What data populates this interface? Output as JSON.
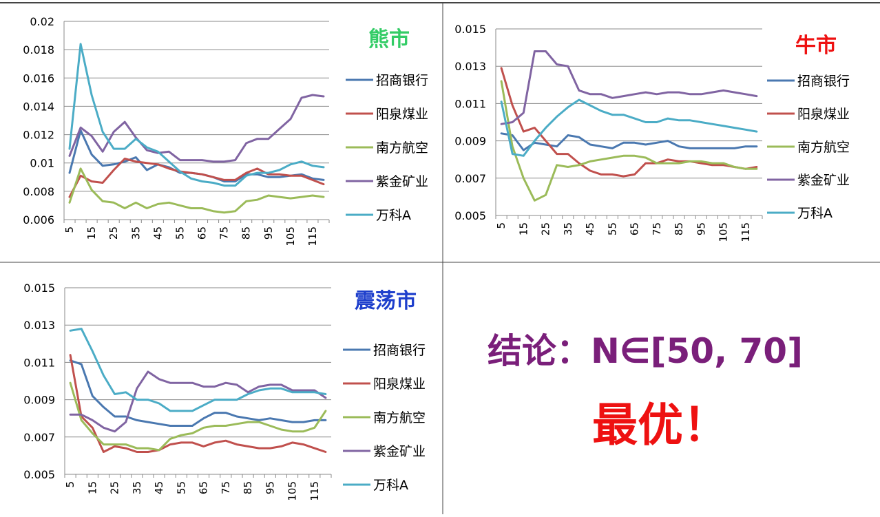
{
  "colors": {
    "招商银行": "#4a78b0",
    "阳泉煤业": "#c0504d",
    "南方航空": "#9bbb59",
    "紫金矿业": "#8064a2",
    "万科A": "#4bacc6",
    "title_bear": "#33cc66",
    "title_bull": "#ee1111",
    "title_osc": "#1e3fcc",
    "conclusion": "#7a1f7a",
    "best": "#ee1111"
  },
  "legend": [
    "招商银行",
    "阳泉煤业",
    "南方航空",
    "紫金矿业",
    "万科A"
  ],
  "chart_data": [
    {
      "type": "line",
      "title": "熊市",
      "x": [
        5,
        10,
        15,
        20,
        25,
        30,
        35,
        40,
        45,
        50,
        55,
        60,
        65,
        70,
        75,
        80,
        85,
        90,
        95,
        100,
        105,
        110,
        115,
        120
      ],
      "xticks": [
        "5",
        "15",
        "25",
        "35",
        "45",
        "55",
        "65",
        "75",
        "85",
        "95",
        "105",
        "115"
      ],
      "ylim": [
        0.006,
        0.02
      ],
      "yticks": [
        "0.006",
        "0.008",
        "0.01",
        "0.012",
        "0.014",
        "0.016",
        "0.018",
        "0.02"
      ],
      "series": [
        {
          "name": "招商银行",
          "values": [
            0.0093,
            0.0123,
            0.0106,
            0.0098,
            0.0099,
            0.0101,
            0.0104,
            0.0095,
            0.0099,
            0.0097,
            0.0093,
            0.0093,
            0.0092,
            0.009,
            0.0087,
            0.0087,
            0.0092,
            0.0092,
            0.009,
            0.009,
            0.0091,
            0.0092,
            0.0089,
            0.0088
          ]
        },
        {
          "name": "阳泉煤业",
          "values": [
            0.0076,
            0.0091,
            0.0087,
            0.0086,
            0.0095,
            0.0103,
            0.0101,
            0.01,
            0.0099,
            0.0096,
            0.0094,
            0.0093,
            0.0092,
            0.009,
            0.0088,
            0.0088,
            0.0093,
            0.0096,
            0.0092,
            0.0092,
            0.0091,
            0.0091,
            0.0088,
            0.0085
          ]
        },
        {
          "name": "南方航空",
          "values": [
            0.0072,
            0.0096,
            0.0081,
            0.0073,
            0.0072,
            0.0068,
            0.0072,
            0.0068,
            0.0071,
            0.0072,
            0.007,
            0.0068,
            0.0068,
            0.0066,
            0.0065,
            0.0066,
            0.0073,
            0.0074,
            0.0077,
            0.0076,
            0.0075,
            0.0076,
            0.0077,
            0.0076
          ]
        },
        {
          "name": "紫金矿业",
          "values": [
            0.0105,
            0.0125,
            0.0119,
            0.0108,
            0.0122,
            0.0129,
            0.0118,
            0.0109,
            0.0107,
            0.0108,
            0.0102,
            0.0102,
            0.0102,
            0.0101,
            0.0101,
            0.0102,
            0.0114,
            0.0117,
            0.0117,
            0.0124,
            0.0131,
            0.0146,
            0.0148,
            0.0147
          ]
        },
        {
          "name": "万科A",
          "values": [
            0.011,
            0.0184,
            0.0148,
            0.0122,
            0.011,
            0.011,
            0.0117,
            0.0111,
            0.0108,
            0.0101,
            0.0094,
            0.0089,
            0.0087,
            0.0086,
            0.0084,
            0.0084,
            0.0091,
            0.0093,
            0.0093,
            0.0095,
            0.0099,
            0.0101,
            0.0098,
            0.0097
          ]
        }
      ]
    },
    {
      "type": "line",
      "title": "牛市",
      "x": [
        5,
        10,
        15,
        20,
        25,
        30,
        35,
        40,
        45,
        50,
        55,
        60,
        65,
        70,
        75,
        80,
        85,
        90,
        95,
        100,
        105,
        110,
        115,
        120
      ],
      "xticks": [
        "5",
        "15",
        "25",
        "35",
        "45",
        "55",
        "65",
        "75",
        "85",
        "95",
        "105",
        "115"
      ],
      "ylim": [
        0.005,
        0.015
      ],
      "yticks": [
        "0.005",
        "0.007",
        "0.009",
        "0.011",
        "0.013",
        "0.015"
      ],
      "series": [
        {
          "name": "招商银行",
          "values": [
            0.0094,
            0.0093,
            0.0085,
            0.0089,
            0.0088,
            0.0087,
            0.0093,
            0.0092,
            0.0088,
            0.0087,
            0.0086,
            0.0089,
            0.0089,
            0.0088,
            0.0089,
            0.009,
            0.0087,
            0.0086,
            0.0086,
            0.0086,
            0.0086,
            0.0086,
            0.0087,
            0.0087
          ]
        },
        {
          "name": "阳泉煤业",
          "values": [
            0.0129,
            0.0109,
            0.0095,
            0.0097,
            0.009,
            0.0083,
            0.0083,
            0.0078,
            0.0074,
            0.0072,
            0.0072,
            0.0071,
            0.0072,
            0.0078,
            0.0078,
            0.008,
            0.0079,
            0.0079,
            0.0078,
            0.0077,
            0.0077,
            0.0076,
            0.0075,
            0.0076
          ]
        },
        {
          "name": "南方航空",
          "values": [
            0.0122,
            0.0087,
            0.007,
            0.0058,
            0.0061,
            0.0077,
            0.0076,
            0.0077,
            0.0079,
            0.008,
            0.0081,
            0.0082,
            0.0082,
            0.0081,
            0.0078,
            0.0078,
            0.0078,
            0.0079,
            0.0079,
            0.0078,
            0.0078,
            0.0076,
            0.0075,
            0.0075
          ]
        },
        {
          "name": "紫金矿业",
          "values": [
            0.0099,
            0.01,
            0.0105,
            0.0138,
            0.0138,
            0.0131,
            0.013,
            0.0117,
            0.0115,
            0.0115,
            0.0113,
            0.0114,
            0.0115,
            0.0116,
            0.0115,
            0.0116,
            0.0116,
            0.0115,
            0.0115,
            0.0116,
            0.0117,
            0.0116,
            0.0115,
            0.0114
          ]
        },
        {
          "name": "万科A",
          "values": [
            0.0111,
            0.0083,
            0.0082,
            0.009,
            0.0097,
            0.0103,
            0.0108,
            0.0112,
            0.0109,
            0.0106,
            0.0104,
            0.0104,
            0.0102,
            0.01,
            0.01,
            0.0102,
            0.0101,
            0.0101,
            0.01,
            0.0099,
            0.0098,
            0.0097,
            0.0096,
            0.0095
          ]
        }
      ]
    },
    {
      "type": "line",
      "title": "震荡市",
      "x": [
        5,
        10,
        15,
        20,
        25,
        30,
        35,
        40,
        45,
        50,
        55,
        60,
        65,
        70,
        75,
        80,
        85,
        90,
        95,
        100,
        105,
        110,
        115,
        120
      ],
      "xticks": [
        "5",
        "15",
        "25",
        "35",
        "45",
        "55",
        "65",
        "75",
        "85",
        "95",
        "105",
        "115"
      ],
      "ylim": [
        0.005,
        0.015
      ],
      "yticks": [
        "0.005",
        "0.007",
        "0.009",
        "0.011",
        "0.013",
        "0.015"
      ],
      "series": [
        {
          "name": "招商银行",
          "values": [
            0.0111,
            0.0109,
            0.0092,
            0.0086,
            0.0081,
            0.0081,
            0.0079,
            0.0078,
            0.0077,
            0.0076,
            0.0076,
            0.0076,
            0.008,
            0.0083,
            0.0083,
            0.0081,
            0.008,
            0.0079,
            0.008,
            0.0079,
            0.0078,
            0.0078,
            0.0079,
            0.0079
          ]
        },
        {
          "name": "阳泉煤业",
          "values": [
            0.0114,
            0.0081,
            0.0075,
            0.0062,
            0.0065,
            0.0064,
            0.0062,
            0.0062,
            0.0063,
            0.0066,
            0.0067,
            0.0067,
            0.0065,
            0.0067,
            0.0068,
            0.0066,
            0.0065,
            0.0064,
            0.0064,
            0.0065,
            0.0067,
            0.0066,
            0.0064,
            0.0062
          ]
        },
        {
          "name": "南方航空",
          "values": [
            0.0099,
            0.0079,
            0.0072,
            0.0066,
            0.0066,
            0.0066,
            0.0064,
            0.0064,
            0.0063,
            0.0069,
            0.0071,
            0.0072,
            0.0075,
            0.0076,
            0.0076,
            0.0077,
            0.0078,
            0.0078,
            0.0076,
            0.0074,
            0.0073,
            0.0073,
            0.0075,
            0.0084
          ]
        },
        {
          "name": "紫金矿业",
          "values": [
            0.0082,
            0.0082,
            0.0079,
            0.0075,
            0.0073,
            0.0078,
            0.0096,
            0.0105,
            0.0101,
            0.0099,
            0.0099,
            0.0099,
            0.0097,
            0.0097,
            0.0099,
            0.0098,
            0.0094,
            0.0097,
            0.0098,
            0.0098,
            0.0095,
            0.0095,
            0.0095,
            0.0091
          ]
        },
        {
          "name": "万科A",
          "values": [
            0.0127,
            0.0128,
            0.0116,
            0.0103,
            0.0093,
            0.0094,
            0.009,
            0.009,
            0.0088,
            0.0084,
            0.0084,
            0.0084,
            0.0087,
            0.009,
            0.009,
            0.009,
            0.0093,
            0.0095,
            0.0096,
            0.0096,
            0.0094,
            0.0094,
            0.0094,
            0.0093
          ]
        }
      ]
    }
  ],
  "conclusion": {
    "line1": "结论：N∈[50, 70]",
    "line2": "最优！"
  }
}
